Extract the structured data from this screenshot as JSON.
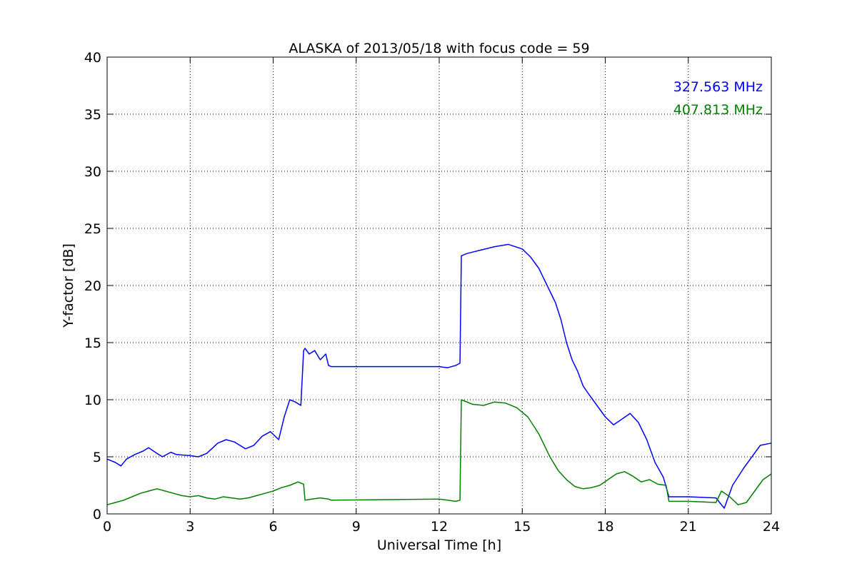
{
  "chart_data": {
    "type": "line",
    "title": "ALASKA of 2013/05/18 with focus code = 59",
    "xlabel": "Universal Time [h]",
    "ylabel": "Y-factor [dB]",
    "xlim": [
      0,
      24
    ],
    "ylim": [
      0,
      40
    ],
    "xticks": [
      0,
      3,
      6,
      9,
      12,
      15,
      18,
      21,
      24
    ],
    "yticks": [
      0,
      5,
      10,
      15,
      20,
      25,
      30,
      35,
      40
    ],
    "grid": true,
    "legend_placement": "top-right",
    "series": [
      {
        "name": "327.563 MHz",
        "color": "#0000ff",
        "x": [
          0,
          0.3,
          0.5,
          0.7,
          1.0,
          1.3,
          1.5,
          1.8,
          2.0,
          2.3,
          2.5,
          3.0,
          3.3,
          3.6,
          4.0,
          4.3,
          4.6,
          5.0,
          5.3,
          5.6,
          5.9,
          6.2,
          6.4,
          6.6,
          6.8,
          7.0,
          7.1,
          7.15,
          7.3,
          7.5,
          7.7,
          7.9,
          8.0,
          8.1,
          9.0,
          12.0,
          12.3,
          12.6,
          12.75,
          12.8,
          13.0,
          13.5,
          14.0,
          14.5,
          15.0,
          15.3,
          15.6,
          15.9,
          16.2,
          16.4,
          16.6,
          16.8,
          17.0,
          17.2,
          17.4,
          17.7,
          18.0,
          18.3,
          18.6,
          18.9,
          19.2,
          19.5,
          19.8,
          20.1,
          20.3,
          21.0,
          22.0,
          22.3,
          22.6,
          23.0,
          23.3,
          23.6,
          24.0
        ],
        "y": [
          4.8,
          4.5,
          4.2,
          4.8,
          5.2,
          5.5,
          5.8,
          5.3,
          5.0,
          5.4,
          5.2,
          5.1,
          5.0,
          5.3,
          6.2,
          6.5,
          6.3,
          5.7,
          6.0,
          6.8,
          7.2,
          6.5,
          8.5,
          10.0,
          9.8,
          9.5,
          14.3,
          14.5,
          14.0,
          14.3,
          13.5,
          14.0,
          13.0,
          12.9,
          12.9,
          12.9,
          12.8,
          13.0,
          13.2,
          22.6,
          22.8,
          23.1,
          23.4,
          23.6,
          23.2,
          22.5,
          21.5,
          20.0,
          18.5,
          17.0,
          15.0,
          13.5,
          12.5,
          11.2,
          10.5,
          9.5,
          8.5,
          7.8,
          8.3,
          8.8,
          8.0,
          6.5,
          4.5,
          3.2,
          1.5,
          1.5,
          1.4,
          0.5,
          2.5,
          4.0,
          5.0,
          6.0,
          6.2
        ]
      },
      {
        "name": "407.813 MHz",
        "color": "#008000",
        "x": [
          0,
          0.3,
          0.6,
          0.9,
          1.2,
          1.5,
          1.8,
          2.1,
          2.4,
          2.7,
          3.0,
          3.3,
          3.6,
          3.9,
          4.2,
          4.5,
          4.8,
          5.1,
          5.4,
          5.7,
          6.0,
          6.3,
          6.6,
          6.9,
          7.1,
          7.15,
          7.4,
          7.7,
          8.0,
          8.1,
          12.0,
          12.3,
          12.6,
          12.75,
          12.8,
          13.2,
          13.6,
          14.0,
          14.4,
          14.8,
          15.2,
          15.6,
          16.0,
          16.3,
          16.6,
          16.9,
          17.2,
          17.5,
          17.8,
          18.1,
          18.4,
          18.7,
          19.0,
          19.3,
          19.6,
          19.9,
          20.2,
          20.3,
          21.0,
          22.0,
          22.2,
          22.5,
          22.8,
          23.1,
          23.4,
          23.7,
          24.0
        ],
        "y": [
          0.8,
          1.0,
          1.2,
          1.5,
          1.8,
          2.0,
          2.2,
          2.0,
          1.8,
          1.6,
          1.5,
          1.6,
          1.4,
          1.3,
          1.5,
          1.4,
          1.3,
          1.4,
          1.6,
          1.8,
          2.0,
          2.3,
          2.5,
          2.8,
          2.6,
          1.2,
          1.3,
          1.4,
          1.3,
          1.2,
          1.3,
          1.2,
          1.1,
          1.2,
          10.0,
          9.6,
          9.5,
          9.8,
          9.7,
          9.3,
          8.5,
          7.0,
          5.0,
          3.8,
          3.0,
          2.4,
          2.2,
          2.3,
          2.5,
          3.0,
          3.5,
          3.7,
          3.3,
          2.8,
          3.0,
          2.6,
          2.5,
          1.1,
          1.1,
          1.0,
          2.0,
          1.5,
          0.8,
          1.0,
          2.0,
          3.0,
          3.5
        ]
      }
    ]
  }
}
